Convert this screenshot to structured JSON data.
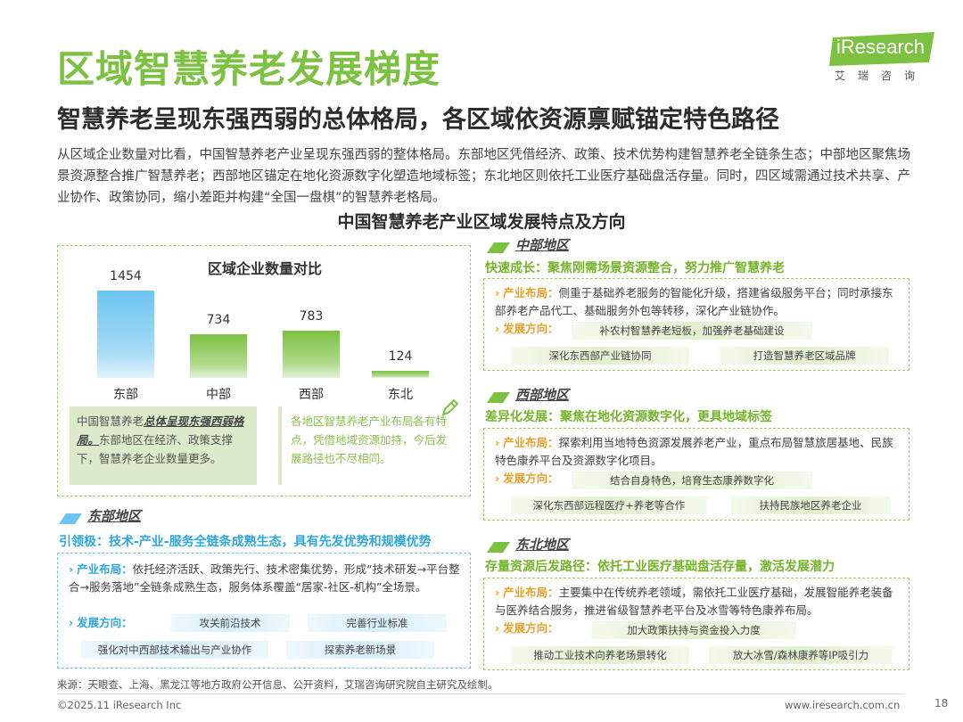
{
  "header": {
    "title": "区域智慧养老发展梯度",
    "subtitle": "智慧养老呈现东强西弱的总体格局，各区域依资源禀赋锚定特色路径",
    "intro": "从区域企业数量对比看，中国智慧养老产业呈现东强西弱的整体格局。东部地区凭借经济、政策、技术优势构建智慧养老全链条生态；中部地区聚焦场景资源整合推广智慧养老；西部地区锚定在地化资源数字化塑造地域标签；东北地区则依托工业医疗基础盘活存量。同时，四区域需通过技术共享、产业协作、政策协同，缩小差距并构建“全国一盘棋”的智慧养老格局。"
  },
  "logo": {
    "text": "iResearch",
    "cn": "艾瑞咨询"
  },
  "section_title": "中国智慧养老产业区域发展特点及方向",
  "chart_data": {
    "type": "bar",
    "title": "区域企业数量对比",
    "categories": [
      "东部",
      "中部",
      "西部",
      "东北"
    ],
    "values": [
      1454,
      734,
      783,
      124
    ],
    "ylim": [
      0,
      1454
    ],
    "colors": [
      "#6cc4f0",
      "#7cc142",
      "#7cc142",
      "#7cc142"
    ],
    "grid": false,
    "legend": "none"
  },
  "notes": {
    "left_prefix": "中国智慧养老",
    "left_emph": "总体呈现东强西弱格局。",
    "left_rest": "东部地区在经济、政策支撑下，智慧养老企业数量更多。",
    "right": "各地区智慧养老产业布局各有特点，凭借地域资源加持，今后发展路径也不尽相同。"
  },
  "regions": {
    "east": {
      "name": "东部地区",
      "slogan": "引领极：技术-产业-服务全链条成熟生态，具有先发优势和规模优势",
      "layout_label": "产业布局：",
      "layout_text": "依托经济活跃、政策先行、技术密集优势，形成“技术研发→平台整合→服务落地”全链条成熟生态，服务体系覆盖“居家-社区-机构”全场景。",
      "direction_label": "发展方向：",
      "tags": [
        "攻关前沿技术",
        "完善行业标准",
        "强化对中西部技术输出与产业协作",
        "探索养老新场景"
      ]
    },
    "central": {
      "name": "中部地区",
      "slogan": "快速成长：聚焦刚需场景资源整合，努力推广智慧养老",
      "layout_label": "产业布局：",
      "layout_text": "侧重于基础养老服务的智能化升级，搭建省级服务平台；同时承接东部养老产品代工、基础服务外包等转移，深化产业链协作。",
      "direction_label": "发展方向：",
      "tags": [
        "补农村智慧养老短板，加强养老基础建设",
        "深化东西部产业链协同",
        "打造智慧养老区域品牌"
      ]
    },
    "west": {
      "name": "西部地区",
      "slogan": "差异化发展：聚焦在地化资源数字化，更具地域标签",
      "layout_label": "产业布局：",
      "layout_text": "探索利用当地特色资源发展养老产业，重点布局智慧旅居基地、民族特色康养平台及资源数字化项目。",
      "direction_label": "发展方向：",
      "tags": [
        "结合自身特色，培育生态康养数字化",
        "深化东西部远程医疗+养老等合作",
        "扶持民族地区养老企业"
      ]
    },
    "northeast": {
      "name": "东北地区",
      "slogan": "存量资源后发路径：依托工业医疗基础盘活存量，激活发展潜力",
      "layout_label": "产业布局：",
      "layout_text": "主要集中在传统养老领域，需依托工业医疗基础，发展智能养老装备与医养结合服务，推进省级智慧养老平台及冰雪等特色康养布局。",
      "direction_label": "发展方向：",
      "tags": [
        "加大政策扶持与资金投入力度",
        "推动工业技术向养老场景转化",
        "放大冰雪/森林康养等IP吸引力"
      ]
    }
  },
  "footer": {
    "source": "来源：天眼查、上海、黑龙江等地方政府公开信息、公开资料，艾瑞咨询研究院自主研究及绘制。",
    "copyright": "©2025.11 iResearch Inc",
    "website": "www.iresearch.com.cn",
    "page": "18"
  }
}
